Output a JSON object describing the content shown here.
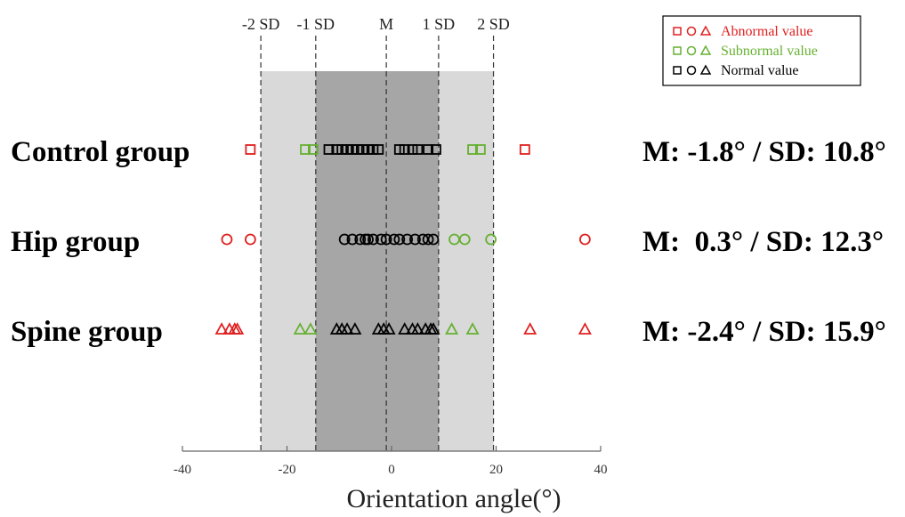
{
  "chart_data": {
    "type": "scatter",
    "xlabel": "Orientation angle(°)",
    "xlim": [
      -40,
      40
    ],
    "xticks": [
      -40,
      -20,
      0,
      20,
      40
    ],
    "xtick_labels": [
      "-40",
      "-20",
      "0",
      "20",
      "40"
    ],
    "sd_lines": [
      {
        "label": "-2 SD",
        "x": -25
      },
      {
        "label": "-1 SD",
        "x": -14.5
      },
      {
        "label": "M",
        "x": -1
      },
      {
        "label": "1 SD",
        "x": 9
      },
      {
        "label": "2 SD",
        "x": 19.5
      }
    ],
    "bands": [
      {
        "from": -25,
        "to": 19.5,
        "color": "#d9d9d9"
      },
      {
        "from": -14.5,
        "to": 9,
        "color": "#a6a6a6"
      }
    ],
    "legend": {
      "position": "top-right",
      "entries": [
        {
          "label": "Abnormal value",
          "color": "#e02020",
          "key": "abnormal"
        },
        {
          "label": "Subnormal value",
          "color": "#66b032",
          "key": "subnormal"
        },
        {
          "label": "Normal value",
          "color": "#000000",
          "key": "normal"
        }
      ]
    },
    "colors": {
      "abnormal": "#e02020",
      "subnormal": "#66b032",
      "normal": "#000000"
    },
    "groups": [
      {
        "name": "Control group",
        "marker": "square",
        "stats": "M: -1.8° / SD: 10.8°",
        "points": {
          "abnormal": [
            -27,
            25.5
          ],
          "subnormal": [
            -16.5,
            -15,
            15.5,
            17
          ],
          "normal": [
            -12,
            -10.5,
            -9.5,
            -8.5,
            -7.5,
            -6.5,
            -5.5,
            -4.5,
            -3.5,
            -2.5,
            1.5,
            2.5,
            4,
            5,
            7,
            8.5
          ]
        }
      },
      {
        "name": "Hip group",
        "marker": "circle",
        "stats": "M:  0.3° / SD: 12.3°",
        "points": {
          "abnormal": [
            -31.5,
            -27,
            37
          ],
          "subnormal": [
            12,
            14,
            19
          ],
          "normal": [
            -9,
            -7.5,
            -6,
            -5,
            -4.5,
            -3.5,
            -2,
            -1,
            0.5,
            1.5,
            3,
            4.5,
            6,
            7,
            8
          ]
        }
      },
      {
        "name": "Spine group",
        "marker": "triangle",
        "stats": "M: -2.4° / SD: 15.9°",
        "points": {
          "abnormal": [
            -32.5,
            -31,
            -30,
            -29.5,
            26.5,
            37
          ],
          "subnormal": [
            -17.5,
            -15.5,
            11.5,
            15.5
          ],
          "normal": [
            -10.5,
            -9.5,
            -8.5,
            -7,
            -2.5,
            -1.5,
            -0.5,
            2.5,
            4,
            5,
            6.5,
            7.5,
            8
          ]
        }
      }
    ]
  }
}
